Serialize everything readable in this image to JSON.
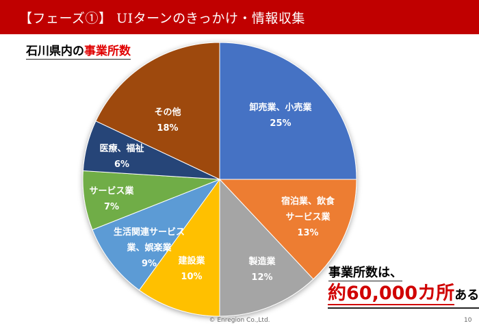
{
  "header": {
    "title": "【フェーズ①】 UIターンのきっかけ・情報収集"
  },
  "subtitle": {
    "prefix": "石川県内の",
    "highlight": "事業所数"
  },
  "chart_data": {
    "type": "pie",
    "start": "12 o'clock, clockwise",
    "slices": [
      {
        "label": "卸売業、小売業",
        "value": 25,
        "pct": "25%",
        "color": "#4472C4"
      },
      {
        "label": "宿泊業、飲食サービス業",
        "value": 13,
        "pct": "13%",
        "color": "#ED7D31"
      },
      {
        "label": "製造業",
        "value": 12,
        "pct": "12%",
        "color": "#A5A5A5"
      },
      {
        "label": "建設業",
        "value": 10,
        "pct": "10%",
        "color": "#FFC000"
      },
      {
        "label": "生活関連サービス業、娯楽業",
        "value": 9,
        "pct": "9%",
        "color": "#5B9BD5"
      },
      {
        "label": "サービス業",
        "value": 7,
        "pct": "7%",
        "color": "#70AD47"
      },
      {
        "label": "医療、福祉",
        "value": 6,
        "pct": "6%",
        "color": "#264478"
      },
      {
        "label": "その他",
        "value": 18,
        "pct": "18%",
        "color": "#9E480E"
      }
    ]
  },
  "labels": [
    {
      "l1": "卸売業、小売業",
      "l2": "",
      "p": "25%"
    },
    {
      "l1": "宿泊業、飲食",
      "l2": "サービス業",
      "p": "13%"
    },
    {
      "l1": "製造業",
      "l2": "",
      "p": "12%"
    },
    {
      "l1": "建設業",
      "l2": "",
      "p": "10%"
    },
    {
      "l1": "生活関連サービス",
      "l2": "業、娯楽業",
      "p": "9%"
    },
    {
      "l1": "サービス業",
      "l2": "",
      "p": "7%"
    },
    {
      "l1": "医療、福祉",
      "l2": "",
      "p": "6%"
    },
    {
      "l1": "その他",
      "l2": "",
      "p": "18%"
    }
  ],
  "note": {
    "line1": "事業所数は、",
    "big": "約60,000カ所",
    "tail": "ある"
  },
  "footer": {
    "copyright": "© Enregion Co.,Ltd.",
    "page": "10"
  }
}
